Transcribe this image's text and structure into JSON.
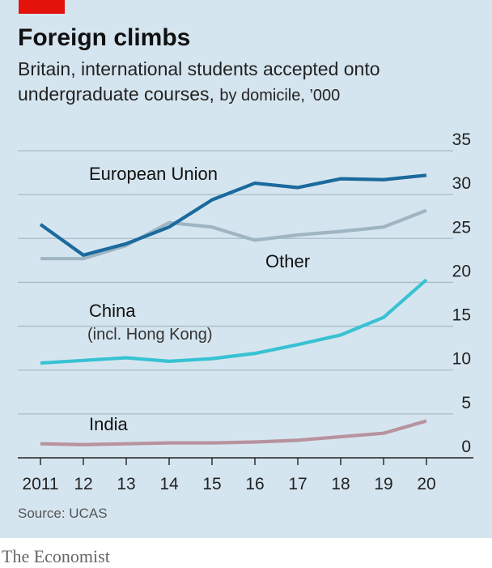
{
  "header": {
    "title": "Foreign climbs",
    "subtitle_main": "Britain, international students accepted onto undergraduate courses,",
    "subtitle_unit": "by domicile, ’000"
  },
  "footer": {
    "source": "Source: UCAS",
    "brand": "The Economist"
  },
  "chart_data": {
    "type": "line",
    "title": "Foreign climbs",
    "subtitle": "Britain, international students accepted onto undergraduate courses, by domicile, ’000",
    "x": [
      2011,
      2012,
      2013,
      2014,
      2015,
      2016,
      2017,
      2018,
      2019,
      2020
    ],
    "x_tick_labels": [
      "2011",
      "12",
      "13",
      "14",
      "15",
      "16",
      "17",
      "18",
      "19",
      "20"
    ],
    "ylim": [
      0,
      35
    ],
    "y_ticks": [
      0,
      5,
      10,
      15,
      20,
      25,
      30,
      35
    ],
    "y_tick_labels": [
      "0",
      "5",
      "10",
      "15",
      "20",
      "25",
      "30",
      "35"
    ],
    "y_axis_position": "right",
    "grid": true,
    "series": [
      {
        "name": "European Union",
        "color": "#1a6a9e",
        "values": [
          26.6,
          23.1,
          24.4,
          26.3,
          29.4,
          31.3,
          30.8,
          31.8,
          31.7,
          32.2
        ]
      },
      {
        "name": "Other",
        "color": "#9fb5c2",
        "values": [
          22.7,
          22.7,
          24.2,
          26.8,
          26.3,
          24.8,
          25.4,
          25.8,
          26.3,
          28.2
        ]
      },
      {
        "name": "China",
        "sublabel": "(incl. Hong Kong)",
        "color": "#38c2d3",
        "values": [
          10.8,
          11.1,
          11.4,
          11.0,
          11.3,
          11.9,
          12.9,
          14.0,
          16.0,
          20.3
        ]
      },
      {
        "name": "India",
        "color": "#b7939e",
        "values": [
          1.6,
          1.5,
          1.6,
          1.7,
          1.7,
          1.8,
          2.0,
          2.4,
          2.8,
          4.2
        ]
      }
    ]
  }
}
